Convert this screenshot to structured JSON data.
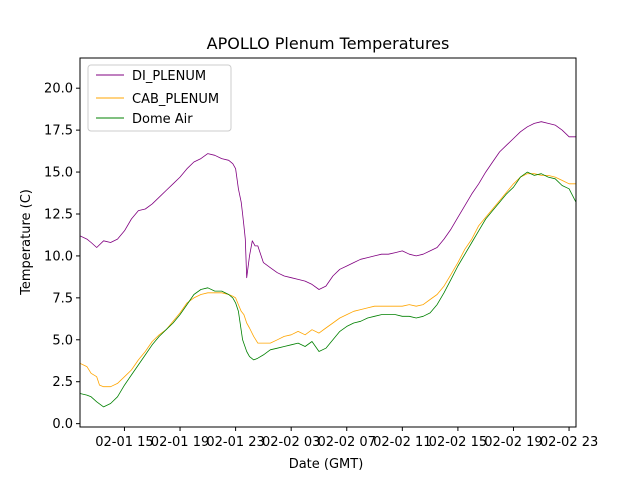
{
  "chart_data": {
    "type": "line",
    "title": "APOLLO Plenum Temperatures",
    "xlabel": "Date (GMT)",
    "ylabel": "Temperature (C)",
    "xlim": [
      11.8,
      47.5
    ],
    "ylim": [
      -0.2,
      21.8
    ],
    "x_unit": "hours since 02-01 00:00 GMT",
    "x_ticks": [
      {
        "value": 15,
        "label": "02-01 15"
      },
      {
        "value": 19,
        "label": "02-01 19"
      },
      {
        "value": 23,
        "label": "02-01 23"
      },
      {
        "value": 27,
        "label": "02-02 03"
      },
      {
        "value": 31,
        "label": "02-02 07"
      },
      {
        "value": 35,
        "label": "02-02 11"
      },
      {
        "value": 39,
        "label": "02-02 15"
      },
      {
        "value": 43,
        "label": "02-02 19"
      },
      {
        "value": 47,
        "label": "02-02 23"
      }
    ],
    "y_ticks": [
      {
        "value": 0.0,
        "label": "0.0"
      },
      {
        "value": 2.5,
        "label": "2.5"
      },
      {
        "value": 5.0,
        "label": "5.0"
      },
      {
        "value": 7.5,
        "label": "7.5"
      },
      {
        "value": 10.0,
        "label": "10.0"
      },
      {
        "value": 12.5,
        "label": "12.5"
      },
      {
        "value": 15.0,
        "label": "15.0"
      },
      {
        "value": 17.5,
        "label": "17.5"
      },
      {
        "value": 20.0,
        "label": "20.0"
      }
    ],
    "grid": false,
    "legend": {
      "placement": "top-left"
    },
    "series": [
      {
        "name": "DI_PLENUM",
        "color": "#800080",
        "x": [
          11.8,
          12.3,
          12.6,
          13.0,
          13.5,
          14.0,
          14.5,
          15.0,
          15.5,
          16.0,
          16.5,
          17.0,
          17.5,
          18.0,
          18.5,
          19.0,
          19.5,
          20.0,
          20.5,
          21.0,
          21.5,
          22.0,
          22.5,
          22.8,
          23.0,
          23.2,
          23.4,
          23.5,
          23.6,
          23.7,
          23.8,
          24.0,
          24.2,
          24.4,
          24.6,
          25.0,
          25.5,
          26.0,
          26.5,
          27.0,
          27.5,
          28.0,
          28.5,
          29.0,
          29.5,
          30.0,
          30.5,
          31.0,
          31.5,
          32.0,
          32.5,
          33.0,
          33.5,
          34.0,
          34.5,
          35.0,
          35.5,
          36.0,
          36.5,
          37.0,
          37.5,
          38.0,
          38.5,
          39.0,
          39.5,
          40.0,
          40.5,
          41.0,
          41.5,
          42.0,
          42.5,
          43.0,
          43.5,
          44.0,
          44.5,
          45.0,
          45.5,
          46.0,
          46.5,
          47.0,
          47.5
        ],
        "values": [
          11.2,
          11.0,
          10.8,
          10.5,
          10.9,
          10.8,
          11.0,
          11.5,
          12.2,
          12.7,
          12.8,
          13.1,
          13.5,
          13.9,
          14.3,
          14.7,
          15.2,
          15.6,
          15.8,
          16.1,
          16.0,
          15.8,
          15.7,
          15.5,
          15.2,
          14.0,
          13.2,
          12.5,
          11.8,
          11.0,
          8.7,
          10.0,
          10.9,
          10.6,
          10.6,
          9.6,
          9.3,
          9.0,
          8.8,
          8.7,
          8.6,
          8.5,
          8.3,
          8.0,
          8.2,
          8.8,
          9.2,
          9.4,
          9.6,
          9.8,
          9.9,
          10.0,
          10.1,
          10.1,
          10.2,
          10.3,
          10.1,
          10.0,
          10.1,
          10.3,
          10.5,
          11.0,
          11.6,
          12.3,
          13.0,
          13.7,
          14.3,
          15.0,
          15.6,
          16.2,
          16.6,
          17.0,
          17.4,
          17.7,
          17.9,
          18.0,
          17.9,
          17.8,
          17.5,
          17.1,
          17.1
        ]
      },
      {
        "name": "CAB_PLENUM",
        "color": "#ffa500",
        "x": [
          11.8,
          12.3,
          12.6,
          13.0,
          13.2,
          13.5,
          14.0,
          14.5,
          15.0,
          15.5,
          16.0,
          16.5,
          17.0,
          17.5,
          18.0,
          18.5,
          19.0,
          19.5,
          20.0,
          20.5,
          21.0,
          21.5,
          22.0,
          22.5,
          22.8,
          23.0,
          23.2,
          23.4,
          23.6,
          23.8,
          24.0,
          24.3,
          24.6,
          25.0,
          25.5,
          26.0,
          26.5,
          27.0,
          27.5,
          28.0,
          28.5,
          29.0,
          29.5,
          30.0,
          30.5,
          31.0,
          31.5,
          32.0,
          32.5,
          33.0,
          33.5,
          34.0,
          34.5,
          35.0,
          35.5,
          36.0,
          36.5,
          37.0,
          37.5,
          38.0,
          38.5,
          39.0,
          39.5,
          40.0,
          40.5,
          41.0,
          41.5,
          42.0,
          42.5,
          43.0,
          43.5,
          44.0,
          44.5,
          45.0,
          45.5,
          46.0,
          46.5,
          47.0,
          47.5
        ],
        "values": [
          3.6,
          3.4,
          3.0,
          2.8,
          2.3,
          2.2,
          2.2,
          2.4,
          2.8,
          3.2,
          3.8,
          4.3,
          4.9,
          5.3,
          5.6,
          6.1,
          6.6,
          7.2,
          7.5,
          7.7,
          7.8,
          7.8,
          7.8,
          7.7,
          7.6,
          7.5,
          7.1,
          6.7,
          6.5,
          6.0,
          5.7,
          5.2,
          4.8,
          4.8,
          4.8,
          5.0,
          5.2,
          5.3,
          5.5,
          5.3,
          5.6,
          5.4,
          5.7,
          6.0,
          6.3,
          6.5,
          6.7,
          6.8,
          6.9,
          7.0,
          7.0,
          7.0,
          7.0,
          7.0,
          7.1,
          7.0,
          7.1,
          7.4,
          7.7,
          8.2,
          8.9,
          9.6,
          10.4,
          11.0,
          11.8,
          12.3,
          12.8,
          13.3,
          13.8,
          14.3,
          14.7,
          14.9,
          14.9,
          14.8,
          14.8,
          14.7,
          14.5,
          14.3,
          14.3
        ]
      },
      {
        "name": "Dome Air",
        "color": "#008000",
        "x": [
          11.8,
          12.3,
          12.6,
          13.0,
          13.5,
          14.0,
          14.5,
          15.0,
          15.5,
          16.0,
          16.5,
          17.0,
          17.5,
          18.0,
          18.5,
          19.0,
          19.5,
          20.0,
          20.5,
          21.0,
          21.5,
          22.0,
          22.5,
          22.8,
          23.0,
          23.2,
          23.5,
          23.8,
          24.0,
          24.3,
          24.6,
          25.0,
          25.5,
          26.0,
          26.5,
          27.0,
          27.5,
          28.0,
          28.5,
          29.0,
          29.5,
          30.0,
          30.5,
          31.0,
          31.5,
          32.0,
          32.5,
          33.0,
          33.5,
          34.0,
          34.5,
          35.0,
          35.5,
          36.0,
          36.5,
          37.0,
          37.5,
          38.0,
          38.5,
          39.0,
          39.5,
          40.0,
          40.5,
          41.0,
          41.5,
          42.0,
          42.5,
          43.0,
          43.5,
          44.0,
          44.5,
          45.0,
          45.5,
          46.0,
          46.5,
          47.0,
          47.5
        ],
        "values": [
          1.8,
          1.7,
          1.6,
          1.3,
          1.0,
          1.2,
          1.6,
          2.3,
          2.9,
          3.5,
          4.1,
          4.7,
          5.2,
          5.6,
          6.0,
          6.5,
          7.1,
          7.7,
          8.0,
          8.1,
          7.9,
          7.9,
          7.7,
          7.5,
          7.2,
          6.7,
          5.0,
          4.3,
          4.0,
          3.8,
          3.9,
          4.1,
          4.4,
          4.5,
          4.6,
          4.7,
          4.8,
          4.6,
          4.9,
          4.3,
          4.5,
          5.0,
          5.5,
          5.8,
          6.0,
          6.1,
          6.3,
          6.4,
          6.5,
          6.5,
          6.5,
          6.4,
          6.4,
          6.3,
          6.4,
          6.6,
          7.1,
          7.8,
          8.6,
          9.4,
          10.1,
          10.8,
          11.5,
          12.2,
          12.7,
          13.2,
          13.7,
          14.1,
          14.7,
          15.0,
          14.8,
          14.9,
          14.7,
          14.6,
          14.2,
          14.0,
          13.2
        ]
      }
    ]
  }
}
